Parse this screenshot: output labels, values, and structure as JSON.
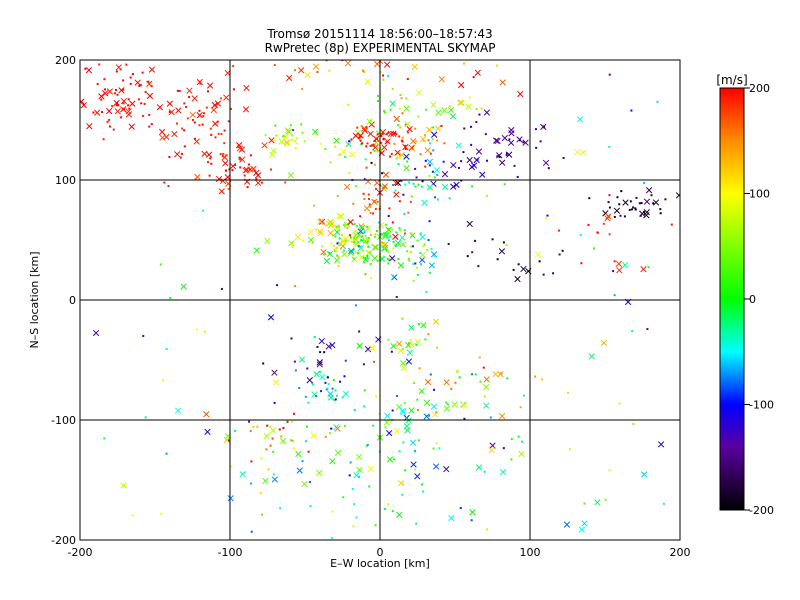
{
  "chart_data": {
    "type": "scatter",
    "title": "Tromsø 20151114 18:56:00–18:57:43",
    "subtitle": "RwPretec (8p) EXPERIMENTAL SKYMAP",
    "xlabel": "E–W location [km]",
    "ylabel": "N–S location [km]",
    "xlim": [
      -200,
      200
    ],
    "ylim": [
      -200,
      200
    ],
    "xticks": [
      "-200",
      "-100",
      "0",
      "100",
      "200"
    ],
    "yticks": [
      "-200",
      "-100",
      "0",
      "100",
      "200"
    ],
    "grid": true,
    "colorbar": {
      "label": "[m/s]",
      "range": [
        -200,
        200
      ],
      "ticks": [
        "200",
        "100",
        "0",
        "-100",
        "-200"
      ]
    },
    "clusters": [
      {
        "x": -175,
        "y": 170,
        "sx": 18,
        "sy": 15,
        "n": 70,
        "v": 200,
        "dv": 8
      },
      {
        "x": -120,
        "y": 150,
        "sx": 20,
        "sy": 20,
        "n": 60,
        "v": 195,
        "dv": 10
      },
      {
        "x": -95,
        "y": 110,
        "sx": 15,
        "sy": 10,
        "n": 55,
        "v": 190,
        "dv": 10
      },
      {
        "x": -60,
        "y": 135,
        "sx": 6,
        "sy": 6,
        "n": 22,
        "v": 70,
        "dv": 25
      },
      {
        "x": -20,
        "y": 130,
        "sx": 20,
        "sy": 15,
        "n": 40,
        "v": 40,
        "dv": 80
      },
      {
        "x": 0,
        "y": 135,
        "sx": 10,
        "sy": 7,
        "n": 50,
        "v": 195,
        "dv": 8
      },
      {
        "x": 25,
        "y": 135,
        "sx": 12,
        "sy": 8,
        "n": 25,
        "v": 150,
        "dv": 25
      },
      {
        "x": 30,
        "y": 160,
        "sx": 20,
        "sy": 10,
        "n": 30,
        "v": 40,
        "dv": 40
      },
      {
        "x": 10,
        "y": 190,
        "sx": 40,
        "sy": 8,
        "n": 35,
        "v": 160,
        "dv": 40
      },
      {
        "x": 80,
        "y": 135,
        "sx": 15,
        "sy": 10,
        "n": 35,
        "v": -150,
        "dv": 20
      },
      {
        "x": 50,
        "y": 110,
        "sx": 30,
        "sy": 10,
        "n": 30,
        "v": -130,
        "dv": 30
      },
      {
        "x": 20,
        "y": 95,
        "sx": 20,
        "sy": 15,
        "n": 35,
        "v": -40,
        "dv": 50
      },
      {
        "x": 175,
        "y": 80,
        "sx": 12,
        "sy": 8,
        "n": 35,
        "v": -185,
        "dv": 15
      },
      {
        "x": 150,
        "y": 40,
        "sx": 12,
        "sy": 20,
        "n": 15,
        "v": 190,
        "dv": 10
      },
      {
        "x": -30,
        "y": 50,
        "sx": 15,
        "sy": 12,
        "n": 60,
        "v": 100,
        "dv": 40
      },
      {
        "x": -10,
        "y": 50,
        "sx": 15,
        "sy": 10,
        "n": 90,
        "v": 40,
        "dv": 40
      },
      {
        "x": 10,
        "y": 40,
        "sx": 20,
        "sy": 10,
        "n": 60,
        "v": -20,
        "dv": 50
      },
      {
        "x": 0,
        "y": 80,
        "sx": 10,
        "sy": 15,
        "n": 35,
        "v": 180,
        "dv": 20
      },
      {
        "x": 80,
        "y": 40,
        "sx": 20,
        "sy": 15,
        "n": 20,
        "v": -180,
        "dv": 20
      },
      {
        "x": -40,
        "y": -75,
        "sx": 10,
        "sy": 8,
        "n": 25,
        "v": -50,
        "dv": 25
      },
      {
        "x": -40,
        "y": -40,
        "sx": 20,
        "sy": 20,
        "n": 25,
        "v": -140,
        "dv": 30
      },
      {
        "x": 20,
        "y": -40,
        "sx": 8,
        "sy": 10,
        "n": 20,
        "v": 40,
        "dv": 40
      },
      {
        "x": 25,
        "y": -100,
        "sx": 35,
        "sy": 25,
        "n": 70,
        "v": 0,
        "dv": 60
      },
      {
        "x": -70,
        "y": -115,
        "sx": 20,
        "sy": 12,
        "n": 35,
        "v": 120,
        "dv": 100
      },
      {
        "x": 0,
        "y": -150,
        "sx": 50,
        "sy": 25,
        "n": 50,
        "v": -20,
        "dv": 60
      },
      {
        "x": 55,
        "y": -75,
        "sx": 25,
        "sy": 25,
        "n": 25,
        "v": 120,
        "dv": 80
      }
    ]
  }
}
